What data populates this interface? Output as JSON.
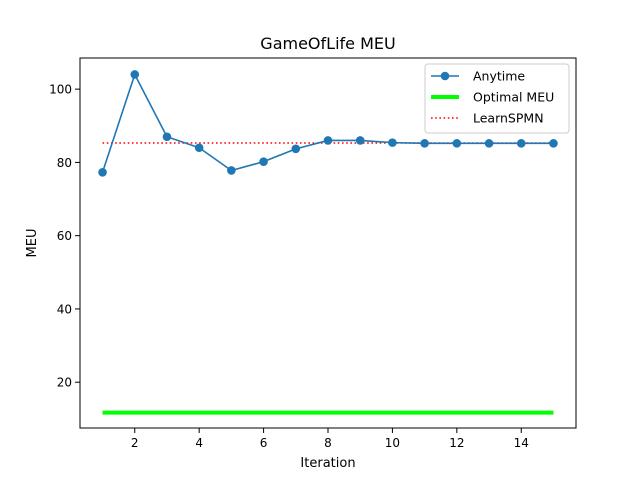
{
  "chart_data": {
    "type": "line",
    "title": "GameOfLife MEU",
    "xlabel": "Iteration",
    "ylabel": "MEU",
    "xlim": [
      0.3,
      15.7
    ],
    "ylim": [
      7.5,
      108.5
    ],
    "x_ticks": [
      2,
      4,
      6,
      8,
      10,
      12,
      14
    ],
    "y_ticks": [
      20,
      40,
      60,
      80,
      100
    ],
    "grid": false,
    "legend_position": "top-right",
    "series": [
      {
        "name": "Anytime",
        "style": "line-markers",
        "color": "#1f77b4",
        "x": [
          1,
          2,
          3,
          4,
          5,
          6,
          7,
          8,
          9,
          10,
          11,
          12,
          13,
          14,
          15
        ],
        "y": [
          77.3,
          104.0,
          87.0,
          84.0,
          77.8,
          80.2,
          83.7,
          86.0,
          86.0,
          85.4,
          85.2,
          85.2,
          85.2,
          85.2,
          85.2
        ]
      },
      {
        "name": "Optimal MEU",
        "style": "solid-thick",
        "color": "#00ff00",
        "x": [
          1,
          15
        ],
        "y": [
          11.7,
          11.7
        ]
      },
      {
        "name": "LearnSPMN",
        "style": "dotted",
        "color": "#ff0000",
        "x": [
          1,
          15
        ],
        "y": [
          85.3,
          85.3
        ]
      }
    ]
  }
}
